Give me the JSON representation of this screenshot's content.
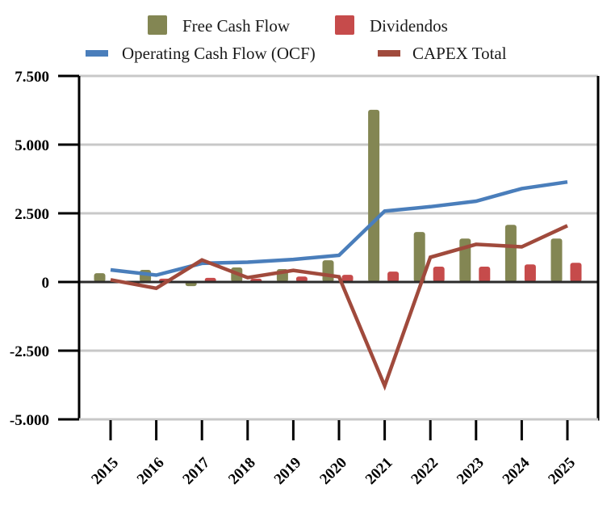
{
  "chart_data": {
    "type": "bar",
    "title": "",
    "xlabel": "",
    "ylabel": "",
    "categories": [
      "2015",
      "2016",
      "2017",
      "2018",
      "2019",
      "2020",
      "2021",
      "2022",
      "2023",
      "2024",
      "2025"
    ],
    "ylim": [
      -5000,
      7500
    ],
    "yticks": [
      7500,
      5000,
      2500,
      0,
      -2500,
      -5000
    ],
    "ytick_labels": [
      "7.500",
      "5.000",
      "2.500",
      "0",
      "-2.500",
      "-5.000"
    ],
    "grid": true,
    "legend_position": "top",
    "series": [
      {
        "name": "Free Cash Flow",
        "kind": "bar",
        "color": "#838653",
        "values": [
          320,
          440,
          -150,
          530,
          470,
          790,
          6270,
          1820,
          1580,
          2080,
          1580
        ]
      },
      {
        "name": "Dividendos",
        "kind": "bar",
        "color": "#c64b4b",
        "values": [
          30,
          120,
          150,
          120,
          200,
          260,
          380,
          560,
          560,
          640,
          700
        ]
      },
      {
        "name": "Operating Cash Flow (OCF)",
        "kind": "line",
        "color": "#4a7ebb",
        "values": [
          440,
          250,
          680,
          720,
          820,
          970,
          2580,
          2740,
          2940,
          3400,
          3640
        ]
      },
      {
        "name": "CAPEX Total",
        "kind": "line",
        "color": "#a04a3c",
        "values": [
          80,
          -230,
          800,
          160,
          420,
          190,
          -3780,
          900,
          1370,
          1280,
          2050
        ]
      }
    ]
  },
  "legend": {
    "row1": [
      "Free Cash Flow",
      "Dividendos"
    ],
    "row2": [
      "Operating Cash Flow (OCF)",
      "CAPEX Total"
    ]
  }
}
